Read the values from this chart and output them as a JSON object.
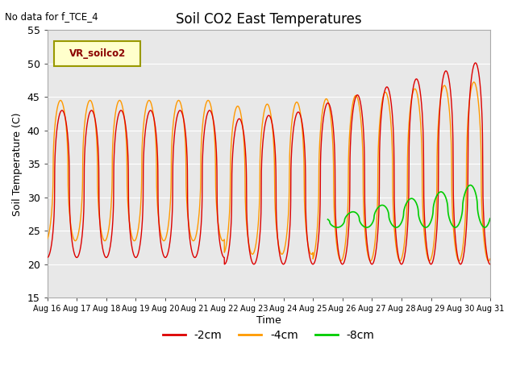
{
  "title": "Soil CO2 East Temperatures",
  "top_left_text": "No data for f_TCE_4",
  "ylabel": "Soil Temperature (C)",
  "xlabel": "Time",
  "ylim": [
    15,
    55
  ],
  "xlim": [
    0,
    15
  ],
  "xtick_labels": [
    "Aug 16",
    "Aug 17",
    "Aug 18",
    "Aug 19",
    "Aug 20",
    "Aug 21",
    "Aug 22",
    "Aug 23",
    "Aug 24",
    "Aug 25",
    "Aug 26",
    "Aug 27",
    "Aug 28",
    "Aug 29",
    "Aug 30",
    "Aug 31"
  ],
  "color_2cm": "#dd0000",
  "color_4cm": "#ff9900",
  "color_8cm": "#00cc00",
  "legend_box_label": "VR_soilco2",
  "background_color": "#e8e8e8",
  "legend_lines": [
    "-2cm",
    "-4cm",
    "-8cm"
  ],
  "grid_color": "#ffffff",
  "figure_bg": "#ffffff"
}
